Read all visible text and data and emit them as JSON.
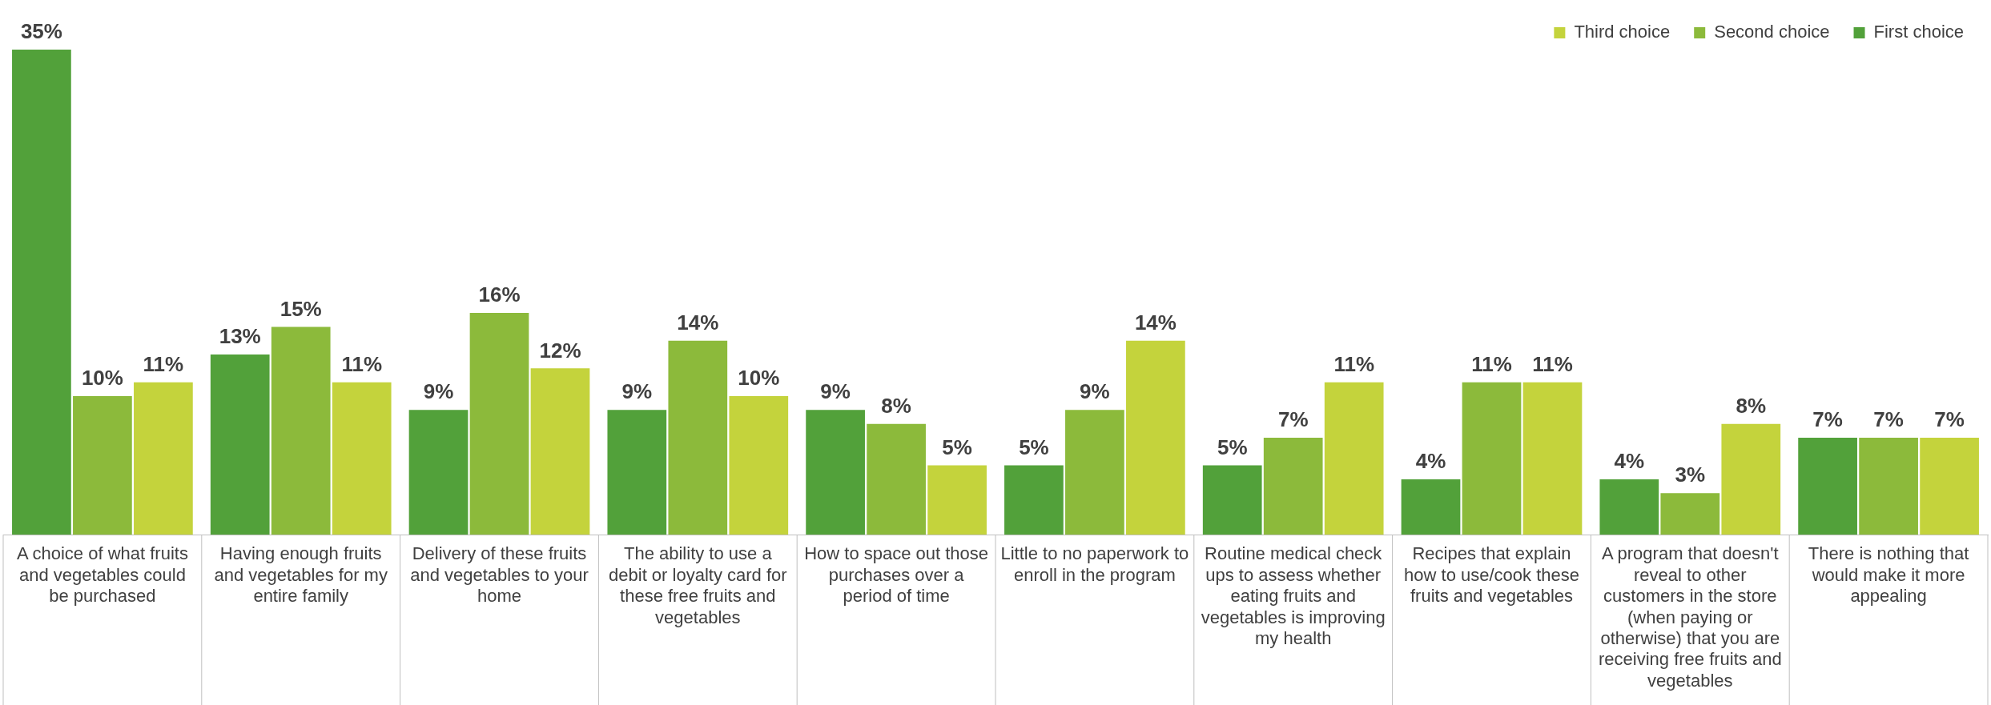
{
  "chart_data": {
    "type": "bar",
    "categories": [
      "A choice of what fruits and vegetables could be purchased",
      "Having enough fruits and vegetables for my entire family",
      "Delivery of these fruits and vegetables to your home",
      "The ability to use a debit or loyalty card for these free fruits and vegetables",
      "How to space out those purchases over a period of time",
      "Little to no paperwork to enroll in the program",
      "Routine medical check ups to assess whether eating fruits and vegetables is improving my health",
      "Recipes that explain how to use/cook these fruits and vegetables",
      "A program that doesn't reveal to other customers in the store (when paying or otherwise) that you are receiving free fruits and vegetables",
      "There is nothing that would make it more appealing"
    ],
    "series": [
      {
        "name": "First choice",
        "color": "#52a13a",
        "values": [
          35,
          13,
          9,
          9,
          9,
          5,
          5,
          4,
          4,
          7
        ],
        "value_labels": [
          "35%",
          "13%",
          "9%",
          "9%",
          "9%",
          "5%",
          "5%",
          "4%",
          "4%",
          "7%"
        ]
      },
      {
        "name": "Second choice",
        "color": "#8cba3b",
        "values": [
          10,
          15,
          16,
          14,
          8,
          9,
          7,
          11,
          3,
          7
        ],
        "value_labels": [
          "10%",
          "15%",
          "16%",
          "14%",
          "8%",
          "9%",
          "7%",
          "11%",
          "3%",
          "7%"
        ]
      },
      {
        "name": "Third choice",
        "color": "#c4d33c",
        "values": [
          11,
          11,
          12,
          10,
          5,
          14,
          11,
          11,
          8,
          7
        ],
        "value_labels": [
          "11%",
          "11%",
          "12%",
          "10%",
          "5%",
          "14%",
          "11%",
          "11%",
          "8%",
          "7%"
        ]
      }
    ],
    "legend": "top right",
    "grid": false
  }
}
